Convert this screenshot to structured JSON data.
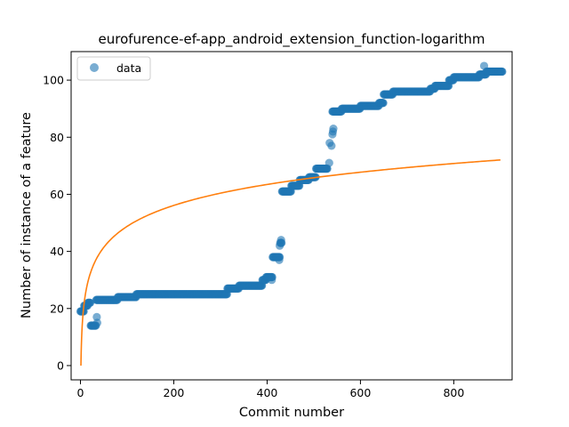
{
  "chart_data": {
    "type": "scatter",
    "title": "eurofurence-ef-app_android_extension_function-logarithm",
    "xlabel": "Commit number",
    "ylabel": "Number of instance of a feature",
    "xlim": [
      -20,
      925
    ],
    "ylim": [
      -5,
      110
    ],
    "xticks": [
      0,
      200,
      400,
      600,
      800
    ],
    "yticks": [
      0,
      20,
      40,
      60,
      80,
      100
    ],
    "legend": {
      "position": "top-left",
      "entries": [
        "data"
      ]
    },
    "grid": false,
    "colors": {
      "data": "#1f77b4",
      "fit": "#ff7f0e"
    },
    "series": [
      {
        "name": "data",
        "kind": "scatter",
        "segments": [
          {
            "x_from": 0,
            "x_to": 8,
            "y": 19
          },
          {
            "x_from": 8,
            "x_to": 16,
            "y": 21
          },
          {
            "x_from": 16,
            "x_to": 22,
            "y": 22
          },
          {
            "x_from": 22,
            "x_to": 34,
            "y": 14
          },
          {
            "x_from": 34,
            "x_to": 80,
            "y": 23
          },
          {
            "x_from": 80,
            "x_to": 120,
            "y": 24
          },
          {
            "x_from": 120,
            "x_to": 315,
            "y": 25
          },
          {
            "x_from": 315,
            "x_to": 340,
            "y": 27
          },
          {
            "x_from": 340,
            "x_to": 390,
            "y": 28
          },
          {
            "x_from": 390,
            "x_to": 398,
            "y": 30
          },
          {
            "x_from": 398,
            "x_to": 412,
            "y": 31
          },
          {
            "x_from": 412,
            "x_to": 428,
            "y": 38
          },
          {
            "x_from": 428,
            "x_to": 432,
            "y": 43
          },
          {
            "x_from": 432,
            "x_to": 452,
            "y": 61
          },
          {
            "x_from": 452,
            "x_to": 470,
            "y": 63
          },
          {
            "x_from": 470,
            "x_to": 490,
            "y": 65
          },
          {
            "x_from": 490,
            "x_to": 505,
            "y": 66
          },
          {
            "x_from": 505,
            "x_to": 530,
            "y": 69
          },
          {
            "x_from": 540,
            "x_to": 560,
            "y": 89
          },
          {
            "x_from": 560,
            "x_to": 600,
            "y": 90
          },
          {
            "x_from": 600,
            "x_to": 640,
            "y": 91
          },
          {
            "x_from": 640,
            "x_to": 650,
            "y": 92
          },
          {
            "x_from": 650,
            "x_to": 670,
            "y": 95
          },
          {
            "x_from": 670,
            "x_to": 750,
            "y": 96
          },
          {
            "x_from": 750,
            "x_to": 760,
            "y": 97
          },
          {
            "x_from": 760,
            "x_to": 790,
            "y": 98
          },
          {
            "x_from": 790,
            "x_to": 800,
            "y": 100
          },
          {
            "x_from": 800,
            "x_to": 855,
            "y": 101
          },
          {
            "x_from": 855,
            "x_to": 870,
            "y": 102
          },
          {
            "x_from": 870,
            "x_to": 905,
            "y": 103
          }
        ],
        "outliers": [
          {
            "x": 35,
            "y": 17
          },
          {
            "x": 36,
            "y": 15
          },
          {
            "x": 410,
            "y": 30
          },
          {
            "x": 426,
            "y": 37
          },
          {
            "x": 427,
            "y": 42
          },
          {
            "x": 430,
            "y": 44
          },
          {
            "x": 533,
            "y": 71
          },
          {
            "x": 534,
            "y": 78
          },
          {
            "x": 538,
            "y": 77
          },
          {
            "x": 540,
            "y": 81
          },
          {
            "x": 541,
            "y": 82
          },
          {
            "x": 542,
            "y": 83
          },
          {
            "x": 865,
            "y": 105
          }
        ]
      },
      {
        "name": "",
        "kind": "line",
        "model": "logarithm",
        "a": 10.59,
        "x_range": [
          1,
          903
        ]
      }
    ]
  }
}
